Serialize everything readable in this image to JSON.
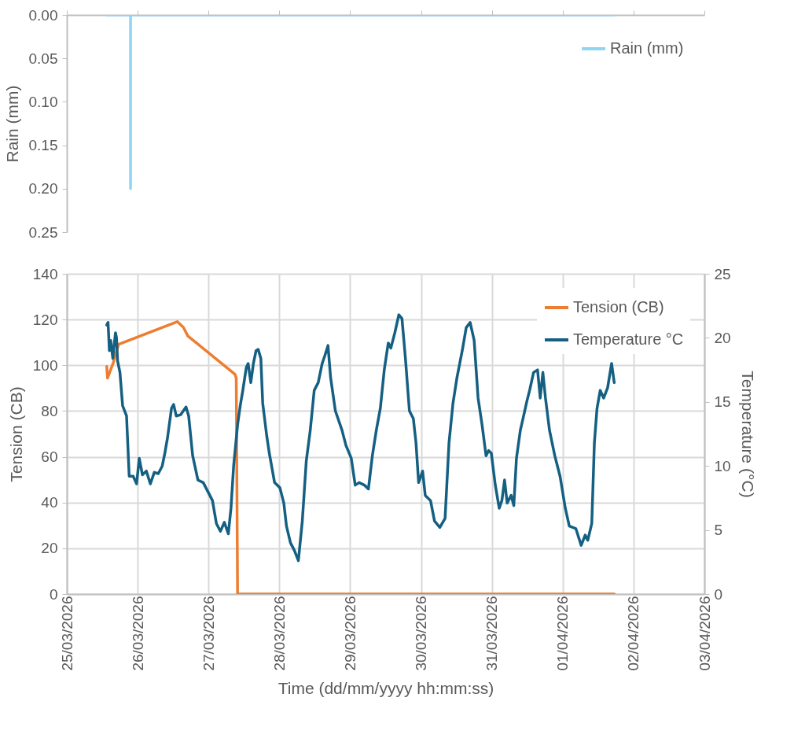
{
  "chart_data": [
    {
      "type": "line",
      "ylabel": "Rain (mm)",
      "xlim": [
        "2026-03-25",
        "2026-04-03"
      ],
      "xticks": [
        {
          "value": "2026-03-25",
          "label": null
        },
        {
          "value": "2026-03-26",
          "label": null
        },
        {
          "value": "2026-03-27",
          "label": null
        },
        {
          "value": "2026-03-28",
          "label": null
        },
        {
          "value": "2026-03-29",
          "label": null
        },
        {
          "value": "2026-03-30",
          "label": null
        },
        {
          "value": "2026-03-31",
          "label": null
        },
        {
          "value": "2026-04-01",
          "label": null
        },
        {
          "value": "2026-04-02",
          "label": null
        },
        {
          "value": "2026-04-03",
          "label": null
        }
      ],
      "ylim": [
        0.25,
        0
      ],
      "yticks": [
        {
          "value": 0,
          "label": "0.00"
        },
        {
          "value": 0.05,
          "label": "0.05"
        },
        {
          "value": 0.1,
          "label": "0.10"
        },
        {
          "value": 0.15,
          "label": "0.15"
        },
        {
          "value": 0.2,
          "label": "0.20"
        },
        {
          "value": 0.25,
          "label": "0.25"
        }
      ],
      "tick_labels": "y",
      "grid": false,
      "legend": "top right",
      "series": [
        {
          "name": "Rain (mm)",
          "color": "#8fd6f3",
          "x": [
            "2026-03-25T13:31",
            "2026-03-25T21:35",
            "2026-03-25T21:35",
            "2026-03-25T21:36",
            "2026-04-01T17:28"
          ],
          "values": [
            0,
            0,
            0.2,
            0,
            0
          ]
        }
      ]
    },
    {
      "type": "line",
      "xlabel": "Time (dd/mm/yyyy hh:mm:ss)",
      "ylabel": "Tension (CB)",
      "y2label": "Temperature (°C)",
      "xlim": [
        "2026-03-25",
        "2026-04-03"
      ],
      "xticks": [
        {
          "value": "2026-03-25",
          "label": "25/03/2026"
        },
        {
          "value": "2026-03-26",
          "label": "26/03/2026"
        },
        {
          "value": "2026-03-27",
          "label": "27/03/2026"
        },
        {
          "value": "2026-03-28",
          "label": "28/03/2026"
        },
        {
          "value": "2026-03-29",
          "label": "29/03/2026"
        },
        {
          "value": "2026-03-30",
          "label": "30/03/2026"
        },
        {
          "value": "2026-03-31",
          "label": "31/03/2026"
        },
        {
          "value": "2026-04-01",
          "label": "01/04/2026"
        },
        {
          "value": "2026-04-02",
          "label": "02/04/2026"
        },
        {
          "value": "2026-04-03",
          "label": "03/04/2026"
        }
      ],
      "ylim": [
        0,
        140
      ],
      "yticks": [
        0,
        20,
        40,
        60,
        80,
        100,
        120,
        140
      ],
      "y2lim": [
        0,
        25
      ],
      "y2ticks": [
        0,
        5,
        10,
        15,
        20,
        25
      ],
      "grid": true,
      "legend": "top right",
      "series": [
        {
          "name": "Tension (CB)",
          "color": "#ed7d31",
          "x": [
            "2026-03-25T13:31",
            "2026-03-25T13:47",
            "2026-03-25T15:46",
            "2026-03-25T17:33",
            "2026-03-26T13:26",
            "2026-03-26T15:29",
            "2026-03-26T17:01",
            "2026-03-27T08:57",
            "2026-03-27T09:24",
            "2026-03-27T09:51",
            "2026-04-01T17:28"
          ],
          "values": [
            99.5,
            94.4,
            101.2,
            109.2,
            119.1,
            116.6,
            112.8,
            96.1,
            94.4,
            0,
            0
          ]
        },
        {
          "name": "Temperature °C",
          "color": "#156082",
          "axis": "y2",
          "x": [
            "2026-03-25T13:31",
            "2026-03-25T13:58",
            "2026-03-25T14:25",
            "2026-03-25T14:52",
            "2026-03-25T15:35",
            "2026-03-25T15:56",
            "2026-03-25T16:29",
            "2026-03-25T16:50",
            "2026-03-25T17:12",
            "2026-03-25T18:00",
            "2026-03-25T18:54",
            "2026-03-25T20:14",
            "2026-03-25T21:08",
            "2026-03-25T22:29",
            "2026-03-25T23:39",
            "2026-03-26T00:32",
            "2026-03-26T01:37",
            "2026-03-26T02:57",
            "2026-03-26T04:18",
            "2026-03-26T05:38",
            "2026-03-26T06:59",
            "2026-03-26T08:20",
            "2026-03-26T09:13",
            "2026-03-26T10:07",
            "2026-03-26T11:28",
            "2026-03-26T12:11",
            "2026-03-26T13:04",
            "2026-03-26T14:36",
            "2026-03-26T16:23",
            "2026-03-26T17:17",
            "2026-03-26T18:38",
            "2026-03-26T20:25",
            "2026-03-26T22:13",
            "2026-03-27T00:00",
            "2026-03-27T01:20",
            "2026-03-27T02:41",
            "2026-03-27T04:02",
            "2026-03-27T05:22",
            "2026-03-27T06:43",
            "2026-03-27T07:37",
            "2026-03-27T08:31",
            "2026-03-27T09:51",
            "2026-03-27T10:45",
            "2026-03-27T11:38",
            "2026-03-27T12:49",
            "2026-03-27T13:26",
            "2026-03-27T14:20",
            "2026-03-27T15:13",
            "2026-03-27T16:07",
            "2026-03-27T16:50",
            "2026-03-27T17:44",
            "2026-03-27T18:22",
            "2026-03-27T19:42",
            "2026-03-27T20:36",
            "2026-03-27T22:23",
            "2026-03-28T00:11",
            "2026-03-28T01:31",
            "2026-03-28T02:25",
            "2026-03-28T03:46",
            "2026-03-28T05:06",
            "2026-03-28T06:27",
            "2026-03-28T07:47",
            "2026-03-28T09:08",
            "2026-03-28T10:29",
            "2026-03-28T11:49",
            "2026-03-28T13:10",
            "2026-03-28T14:31",
            "2026-03-28T15:24",
            "2026-03-28T16:29",
            "2026-03-28T17:22",
            "2026-03-28T18:59",
            "2026-03-28T21:13",
            "2026-03-28T22:34",
            "2026-03-29T00:22",
            "2026-03-29T01:42",
            "2026-03-29T03:02",
            "2026-03-29T04:50",
            "2026-03-29T06:11",
            "2026-03-29T07:31",
            "2026-03-29T08:52",
            "2026-03-29T10:13",
            "2026-03-29T11:33",
            "2026-03-29T12:54",
            "2026-03-29T13:47",
            "2026-03-29T15:08",
            "2026-03-29T16:29",
            "2026-03-29T17:33",
            "2026-03-29T18:43",
            "2026-03-29T20:04",
            "2026-03-29T21:24",
            "2026-03-29T22:18",
            "2026-03-29T23:11",
            "2026-03-30T00:32",
            "2026-03-30T01:26",
            "2026-03-30T03:13",
            "2026-03-30T04:34",
            "2026-03-30T06:22",
            "2026-03-30T08:09",
            "2026-03-30T09:29",
            "2026-03-30T10:50",
            "2026-03-30T12:11",
            "2026-03-30T13:58",
            "2026-03-30T15:19",
            "2026-03-30T16:39",
            "2026-03-30T18:00",
            "2026-03-30T19:20",
            "2026-03-30T20:41",
            "2026-03-30T22:02",
            "2026-03-30T22:55",
            "2026-03-30T23:49",
            "2026-03-31T01:10",
            "2026-03-31T02:30",
            "2026-03-31T03:24",
            "2026-03-31T04:18",
            "2026-03-31T05:11",
            "2026-03-31T06:32",
            "2026-03-31T07:26",
            "2026-03-31T08:20",
            "2026-03-31T09:40",
            "2026-03-31T10:34",
            "2026-03-31T11:55",
            "2026-03-31T12:48",
            "2026-03-31T14:08",
            "2026-03-31T15:29",
            "2026-03-31T16:23",
            "2026-03-31T17:17",
            "2026-03-31T18:10",
            "2026-03-31T19:31",
            "2026-03-31T21:19",
            "2026-03-31T23:06",
            "2026-04-01T00:53",
            "2026-04-01T02:14",
            "2026-04-01T04:28",
            "2026-04-01T06:16",
            "2026-04-01T07:37",
            "2026-04-01T08:30",
            "2026-04-01T09:51",
            "2026-04-01T10:44",
            "2026-04-01T11:38",
            "2026-04-01T12:43",
            "2026-04-01T13:53",
            "2026-04-01T15:13",
            "2026-04-01T16:34",
            "2026-04-01T17:28"
          ],
          "values": [
            21.0,
            21.2,
            19.0,
            19.8,
            18.4,
            19.2,
            20.4,
            20.0,
            18.2,
            17.3,
            14.7,
            13.9,
            9.2,
            9.2,
            8.6,
            10.6,
            9.3,
            9.6,
            8.6,
            9.5,
            9.4,
            10.0,
            11.0,
            12.2,
            14.5,
            14.8,
            13.9,
            14.0,
            14.6,
            13.9,
            10.8,
            8.9,
            8.7,
            7.9,
            7.3,
            5.5,
            4.9,
            5.6,
            4.7,
            6.7,
            10.0,
            13.2,
            14.7,
            15.9,
            17.7,
            18.0,
            16.5,
            18.0,
            19.0,
            19.1,
            18.4,
            14.9,
            12.4,
            11.0,
            8.7,
            8.3,
            7.1,
            5.3,
            4.0,
            3.4,
            2.6,
            5.7,
            10.4,
            12.8,
            15.9,
            16.5,
            18.0,
            18.6,
            19.4,
            16.9,
            14.3,
            12.8,
            11.6,
            10.6,
            8.5,
            8.7,
            8.5,
            8.2,
            10.8,
            12.8,
            14.5,
            17.5,
            19.6,
            19.2,
            20.4,
            21.8,
            21.5,
            18.4,
            14.3,
            13.7,
            11.8,
            8.7,
            9.6,
            7.7,
            7.3,
            5.7,
            5.2,
            5.9,
            11.8,
            14.9,
            16.9,
            19.0,
            20.8,
            21.2,
            19.8,
            15.3,
            13.2,
            10.8,
            11.2,
            11.0,
            8.5,
            6.7,
            7.3,
            8.9,
            7.1,
            7.7,
            6.9,
            10.6,
            12.8,
            13.7,
            15.1,
            15.9,
            17.3,
            17.5,
            15.3,
            17.3,
            15.3,
            12.8,
            10.8,
            9.2,
            6.7,
            5.3,
            5.1,
            3.8,
            4.6,
            4.2,
            5.5,
            11.8,
            14.5,
            15.9,
            15.3,
            16.1,
            18.0,
            16.5
          ]
        }
      ]
    }
  ]
}
